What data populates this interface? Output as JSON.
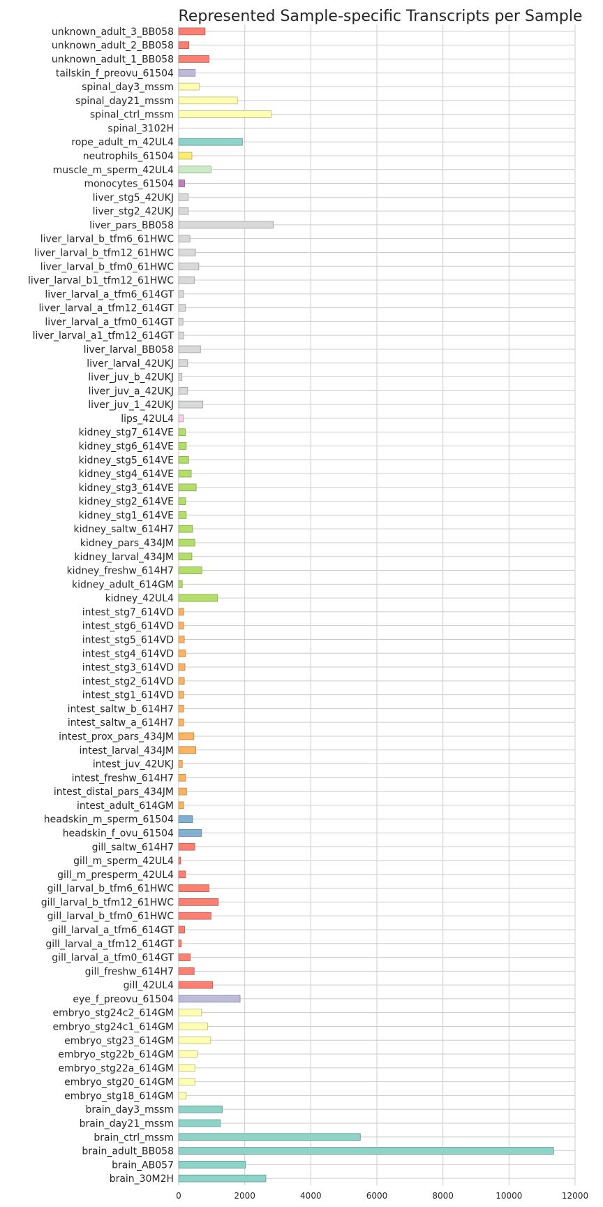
{
  "chart_data": {
    "type": "bar",
    "orientation": "horizontal",
    "title": "Represented Sample-specific Transcripts per Sample",
    "xlabel": "",
    "ylabel": "",
    "xlim": [
      0,
      12000
    ],
    "xticks": [
      0,
      2000,
      4000,
      6000,
      8000,
      10000,
      12000
    ],
    "grid": true,
    "legend": "none",
    "categories": [
      "unknown_adult_3_BB058",
      "unknown_adult_2_BB058",
      "unknown_adult_1_BB058",
      "tailskin_f_preovu_61504",
      "spinal_day3_mssm",
      "spinal_day21_mssm",
      "spinal_ctrl_mssm",
      "spinal_3102H",
      "rope_adult_m_42UL4",
      "neutrophils_61504",
      "muscle_m_sperm_42UL4",
      "monocytes_61504",
      "liver_stg5_42UKJ",
      "liver_stg2_42UKJ",
      "liver_pars_BB058",
      "liver_larval_b_tfm6_61HWC",
      "liver_larval_b_tfm12_61HWC",
      "liver_larval_b_tfm0_61HWC",
      "liver_larval_b1_tfm12_61HWC",
      "liver_larval_a_tfm6_614GT",
      "liver_larval_a_tfm12_614GT",
      "liver_larval_a_tfm0_614GT",
      "liver_larval_a1_tfm12_614GT",
      "liver_larval_BB058",
      "liver_larval_42UKJ",
      "liver_juv_b_42UKJ",
      "liver_juv_a_42UKJ",
      "liver_juv_1_42UKJ",
      "lips_42UL4",
      "kidney_stg7_614VE",
      "kidney_stg6_614VE",
      "kidney_stg5_614VE",
      "kidney_stg4_614VE",
      "kidney_stg3_614VE",
      "kidney_stg2_614VE",
      "kidney_stg1_614VE",
      "kidney_saltw_614H7",
      "kidney_pars_434JM",
      "kidney_larval_434JM",
      "kidney_freshw_614H7",
      "kidney_adult_614GM",
      "kidney_42UL4",
      "intest_stg7_614VD",
      "intest_stg6_614VD",
      "intest_stg5_614VD",
      "intest_stg4_614VD",
      "intest_stg3_614VD",
      "intest_stg2_614VD",
      "intest_stg1_614VD",
      "intest_saltw_b_614H7",
      "intest_saltw_a_614H7",
      "intest_prox_pars_434JM",
      "intest_larval_434JM",
      "intest_juv_42UKJ",
      "intest_freshw_614H7",
      "intest_distal_pars_434JM",
      "intest_adult_614GM",
      "headskin_m_sperm_61504",
      "headskin_f_ovu_61504",
      "gill_saltw_614H7",
      "gill_m_sperm_42UL4",
      "gill_m_presperm_42UL4",
      "gill_larval_b_tfm6_61HWC",
      "gill_larval_b_tfm12_61HWC",
      "gill_larval_b_tfm0_61HWC",
      "gill_larval_a_tfm6_614GT",
      "gill_larval_a_tfm12_614GT",
      "gill_larval_a_tfm0_614GT",
      "gill_freshw_614H7",
      "gill_42UL4",
      "eye_f_preovu_61504",
      "embryo_stg24c2_614GM",
      "embryo_stg24c1_614GM",
      "embryo_stg23_614GM",
      "embryo_stg22b_614GM",
      "embryo_stg22a_614GM",
      "embryo_stg20_614GM",
      "embryo_stg18_614GM",
      "brain_day3_mssm",
      "brain_day21_mssm",
      "brain_ctrl_mssm",
      "brain_adult_BB058",
      "brain_AB057",
      "brain_30M2H"
    ],
    "values": [
      800,
      310,
      920,
      500,
      620,
      1780,
      2800,
      0,
      1930,
      400,
      980,
      180,
      290,
      290,
      2870,
      340,
      510,
      610,
      480,
      150,
      200,
      130,
      150,
      660,
      270,
      100,
      270,
      730,
      140,
      200,
      230,
      300,
      380,
      530,
      210,
      230,
      420,
      490,
      400,
      700,
      110,
      1180,
      150,
      150,
      170,
      210,
      190,
      170,
      150,
      150,
      150,
      460,
      520,
      110,
      210,
      240,
      150,
      420,
      690,
      490,
      60,
      210,
      920,
      1200,
      980,
      180,
      80,
      350,
      470,
      1030,
      1860,
      690,
      880,
      970,
      560,
      490,
      490,
      230,
      1320,
      1260,
      5500,
      11350,
      2020,
      2640
    ],
    "colors": [
      "#fb8072",
      "#fb8072",
      "#fb8072",
      "#bebada",
      "#ffffb3",
      "#ffffb3",
      "#ffffb3",
      "#ffffb3",
      "#8dd3c7",
      "#ffed6f",
      "#ccebc5",
      "#bc80bd",
      "#d9d9d9",
      "#d9d9d9",
      "#d9d9d9",
      "#d9d9d9",
      "#d9d9d9",
      "#d9d9d9",
      "#d9d9d9",
      "#d9d9d9",
      "#d9d9d9",
      "#d9d9d9",
      "#d9d9d9",
      "#d9d9d9",
      "#d9d9d9",
      "#d9d9d9",
      "#d9d9d9",
      "#d9d9d9",
      "#fccde5",
      "#b3de69",
      "#b3de69",
      "#b3de69",
      "#b3de69",
      "#b3de69",
      "#b3de69",
      "#b3de69",
      "#b3de69",
      "#b3de69",
      "#b3de69",
      "#b3de69",
      "#b3de69",
      "#b3de69",
      "#fdb462",
      "#fdb462",
      "#fdb462",
      "#fdb462",
      "#fdb462",
      "#fdb462",
      "#fdb462",
      "#fdb462",
      "#fdb462",
      "#fdb462",
      "#fdb462",
      "#fdb462",
      "#fdb462",
      "#fdb462",
      "#fdb462",
      "#80b1d3",
      "#80b1d3",
      "#fb8072",
      "#fb8072",
      "#fb8072",
      "#fb8072",
      "#fb8072",
      "#fb8072",
      "#fb8072",
      "#fb8072",
      "#fb8072",
      "#fb8072",
      "#fb8072",
      "#bebada",
      "#ffffb3",
      "#ffffb3",
      "#ffffb3",
      "#ffffb3",
      "#ffffb3",
      "#ffffb3",
      "#ffffb3",
      "#8dd3c7",
      "#8dd3c7",
      "#8dd3c7",
      "#8dd3c7",
      "#8dd3c7",
      "#8dd3c7"
    ]
  }
}
